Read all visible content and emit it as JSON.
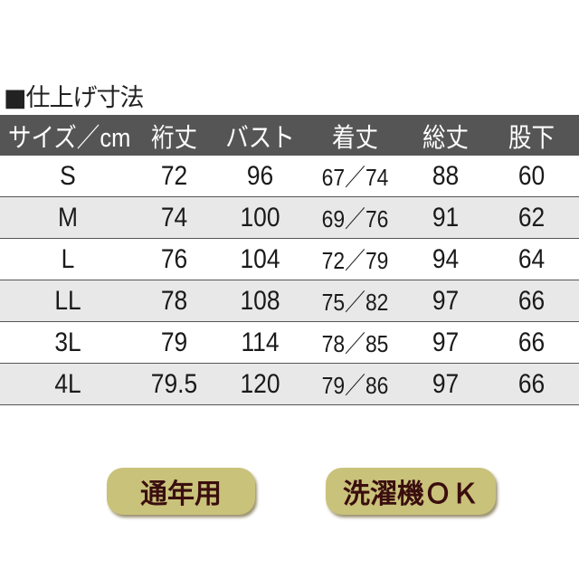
{
  "title": "■仕上げ寸法",
  "table": {
    "headers": [
      "サイズ／cm",
      "裄丈",
      "バスト",
      "着丈",
      "総丈",
      "股下"
    ],
    "rows": [
      [
        "S",
        "72",
        "96",
        "67／74",
        "88",
        "60"
      ],
      [
        "M",
        "74",
        "100",
        "69／76",
        "91",
        "62"
      ],
      [
        "L",
        "76",
        "104",
        "72／79",
        "94",
        "64"
      ],
      [
        "LL",
        "78",
        "108",
        "75／82",
        "97",
        "66"
      ],
      [
        "3L",
        "79",
        "114",
        "78／85",
        "97",
        "66"
      ],
      [
        "4L",
        "79.5",
        "120",
        "79／86",
        "97",
        "66"
      ]
    ]
  },
  "badges": [
    "通年用",
    "洗濯機ＯＫ"
  ],
  "colors": {
    "header_bg": "#555555",
    "badge_bg": "#c9c27a",
    "badge_text": "#3a0e0e",
    "alt_row": "#e8e8e8"
  }
}
